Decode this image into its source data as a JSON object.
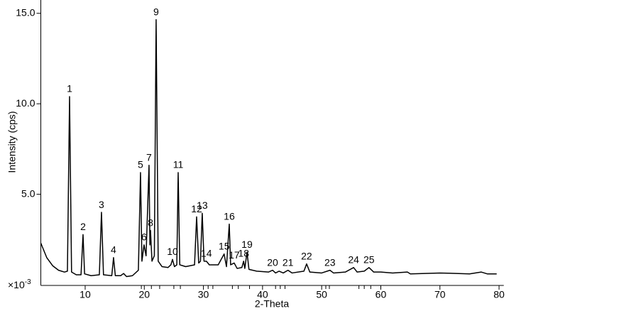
{
  "chart_data": {
    "type": "line",
    "x_label": "2-Theta",
    "y_label": "Intensity (cps)",
    "y_multiplier": {
      "base": "×10",
      "exponent": "-3"
    },
    "xlim": [
      2.5,
      80.8
    ],
    "ylim": [
      0,
      15.7
    ],
    "xticks": [
      10,
      20,
      30,
      40,
      50,
      60,
      70,
      80
    ],
    "yticks": [
      {
        "value": 5,
        "label": "5.0"
      },
      {
        "value": 10,
        "label": "10.0"
      },
      {
        "value": 15,
        "label": "15.0"
      }
    ],
    "reference_x": [
      19.5,
      21.2,
      22.6,
      25.0,
      26.1,
      30.8,
      31.6,
      34.9,
      35.9,
      37.8,
      42.2,
      43.0,
      43.8,
      50.7,
      51.3,
      56.3,
      57.2,
      58.3,
      60.0
    ],
    "series": [
      {
        "color": "#000000",
        "x": [
          2.5,
          3.5,
          4.5,
          5.5,
          6.5,
          7.0,
          7.36,
          7.7,
          8.5,
          9.3,
          9.64,
          9.9,
          11,
          12.4,
          12.76,
          13.1,
          14.5,
          14.8,
          15.1,
          16.0,
          16.5,
          17,
          18,
          19.0,
          19.36,
          19.6,
          19.96,
          20.3,
          20.8,
          20.95,
          21.05,
          21.3,
          21.7,
          22.0,
          22.35,
          23,
          24,
          24.5,
          24.77,
          25.1,
          25.5,
          25.73,
          26.0,
          27,
          28.5,
          28.85,
          29.2,
          29.5,
          29.8,
          30.1,
          30.5,
          31,
          32.5,
          33.5,
          33.9,
          34.37,
          34.6,
          35.2,
          35.7,
          36.5,
          36.8,
          37.0,
          37.37,
          37.7,
          39,
          41,
          41.7,
          42.2,
          42.8,
          43.5,
          44.3,
          45,
          47,
          47.45,
          48,
          50,
          51.4,
          52,
          54,
          55.4,
          56,
          57.2,
          58.0,
          58.8,
          60,
          62,
          64.5,
          65,
          70,
          75,
          77,
          78,
          79.6
        ],
        "values": [
          2.3,
          1.5,
          1.05,
          0.8,
          0.7,
          0.75,
          10.4,
          0.7,
          0.55,
          0.55,
          2.77,
          0.6,
          0.5,
          0.55,
          4.0,
          0.55,
          0.5,
          1.5,
          0.5,
          0.5,
          0.62,
          0.45,
          0.5,
          0.8,
          6.2,
          1.3,
          2.2,
          1.6,
          6.6,
          2.2,
          3.0,
          1.3,
          1.6,
          14.65,
          1.3,
          1.0,
          0.95,
          1.1,
          1.4,
          1.0,
          1.1,
          6.2,
          1.1,
          1.0,
          1.1,
          3.75,
          1.2,
          1.3,
          3.95,
          1.3,
          1.3,
          1.1,
          1.1,
          1.7,
          1.0,
          3.35,
          1.1,
          1.2,
          0.9,
          0.95,
          1.3,
          0.9,
          1.8,
          0.85,
          0.75,
          0.7,
          0.8,
          0.65,
          0.75,
          0.65,
          0.8,
          0.65,
          0.75,
          1.15,
          0.7,
          0.65,
          0.8,
          0.65,
          0.7,
          0.95,
          0.7,
          0.75,
          0.95,
          0.7,
          0.7,
          0.65,
          0.7,
          0.6,
          0.65,
          0.6,
          0.7,
          0.6,
          0.6
        ]
      }
    ],
    "peaks": [
      {
        "label": "1",
        "x": 7.36,
        "y": 10.4
      },
      {
        "label": "2",
        "x": 9.64,
        "y": 2.77
      },
      {
        "label": "3",
        "x": 12.76,
        "y": 4.0
      },
      {
        "label": "4",
        "x": 14.8,
        "y": 1.5
      },
      {
        "label": "5",
        "x": 19.36,
        "y": 6.2
      },
      {
        "label": "6",
        "x": 19.96,
        "y": 2.2
      },
      {
        "label": "7",
        "x": 20.8,
        "y": 6.6
      },
      {
        "label": "8",
        "x": 21.05,
        "y": 3.0
      },
      {
        "label": "9",
        "x": 22.0,
        "y": 14.65
      },
      {
        "label": "10",
        "x": 24.77,
        "y": 1.4
      },
      {
        "label": "11",
        "x": 25.73,
        "y": 6.2
      },
      {
        "label": "12",
        "x": 28.85,
        "y": 3.75
      },
      {
        "label": "13",
        "x": 29.8,
        "y": 3.95
      },
      {
        "label": "14",
        "x": 30.5,
        "y": 1.3
      },
      {
        "label": "15",
        "x": 33.5,
        "y": 1.7
      },
      {
        "label": "16",
        "x": 34.37,
        "y": 3.35
      },
      {
        "label": "17",
        "x": 35.2,
        "y": 1.2
      },
      {
        "label": "18",
        "x": 36.8,
        "y": 1.3
      },
      {
        "label": "19",
        "x": 37.37,
        "y": 1.8
      },
      {
        "label": "20",
        "x": 41.7,
        "y": 0.8
      },
      {
        "label": "21",
        "x": 44.3,
        "y": 0.8
      },
      {
        "label": "22",
        "x": 47.45,
        "y": 1.15
      },
      {
        "label": "23",
        "x": 51.4,
        "y": 0.8
      },
      {
        "label": "24",
        "x": 55.4,
        "y": 0.95
      },
      {
        "label": "25",
        "x": 58.0,
        "y": 0.95
      }
    ]
  }
}
